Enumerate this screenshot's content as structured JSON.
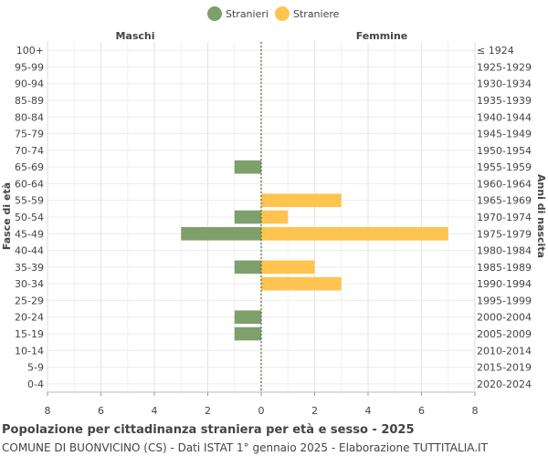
{
  "chart_data": {
    "type": "bar",
    "title": "Popolazione per cittadinanza straniera per età e sesso - 2025",
    "subtitle": "COMUNE DI BUONVICINO (CS) - Dati ISTAT 1° gennaio 2025 - Elaborazione TUTTITALIA.IT",
    "left_header": "Maschi",
    "right_header": "Femmine",
    "ylabel_left": "Fasce di età",
    "ylabel_right": "Anni di nascita",
    "legend_position": "top-center",
    "grid": true,
    "xlim": [
      -8,
      8
    ],
    "x_ticks": [
      "8",
      "6",
      "4",
      "2",
      "0",
      "2",
      "4",
      "6",
      "8"
    ],
    "categories": [
      "100+",
      "95-99",
      "90-94",
      "85-89",
      "80-84",
      "75-79",
      "70-74",
      "65-69",
      "60-64",
      "55-59",
      "50-54",
      "45-49",
      "40-44",
      "35-39",
      "30-34",
      "25-29",
      "20-24",
      "15-19",
      "10-14",
      "5-9",
      "0-4"
    ],
    "birth_years": [
      "≤ 1924",
      "1925-1929",
      "1930-1934",
      "1935-1939",
      "1940-1944",
      "1945-1949",
      "1950-1954",
      "1955-1959",
      "1960-1964",
      "1965-1969",
      "1970-1974",
      "1975-1979",
      "1980-1984",
      "1985-1989",
      "1990-1994",
      "1995-1999",
      "2000-2004",
      "2005-2009",
      "2010-2014",
      "2015-2019",
      "2020-2024"
    ],
    "series": [
      {
        "name": "Stranieri",
        "side": "left",
        "color": "#7ea06c",
        "values": [
          0,
          0,
          0,
          0,
          0,
          0,
          0,
          1,
          0,
          0,
          1,
          3,
          0,
          1,
          0,
          0,
          1,
          1,
          0,
          0,
          0
        ]
      },
      {
        "name": "Straniere",
        "side": "right",
        "color": "#ffc34f",
        "values": [
          0,
          0,
          0,
          0,
          0,
          0,
          0,
          0,
          0,
          3,
          1,
          7,
          0,
          2,
          3,
          0,
          0,
          0,
          0,
          0,
          0
        ]
      }
    ]
  }
}
